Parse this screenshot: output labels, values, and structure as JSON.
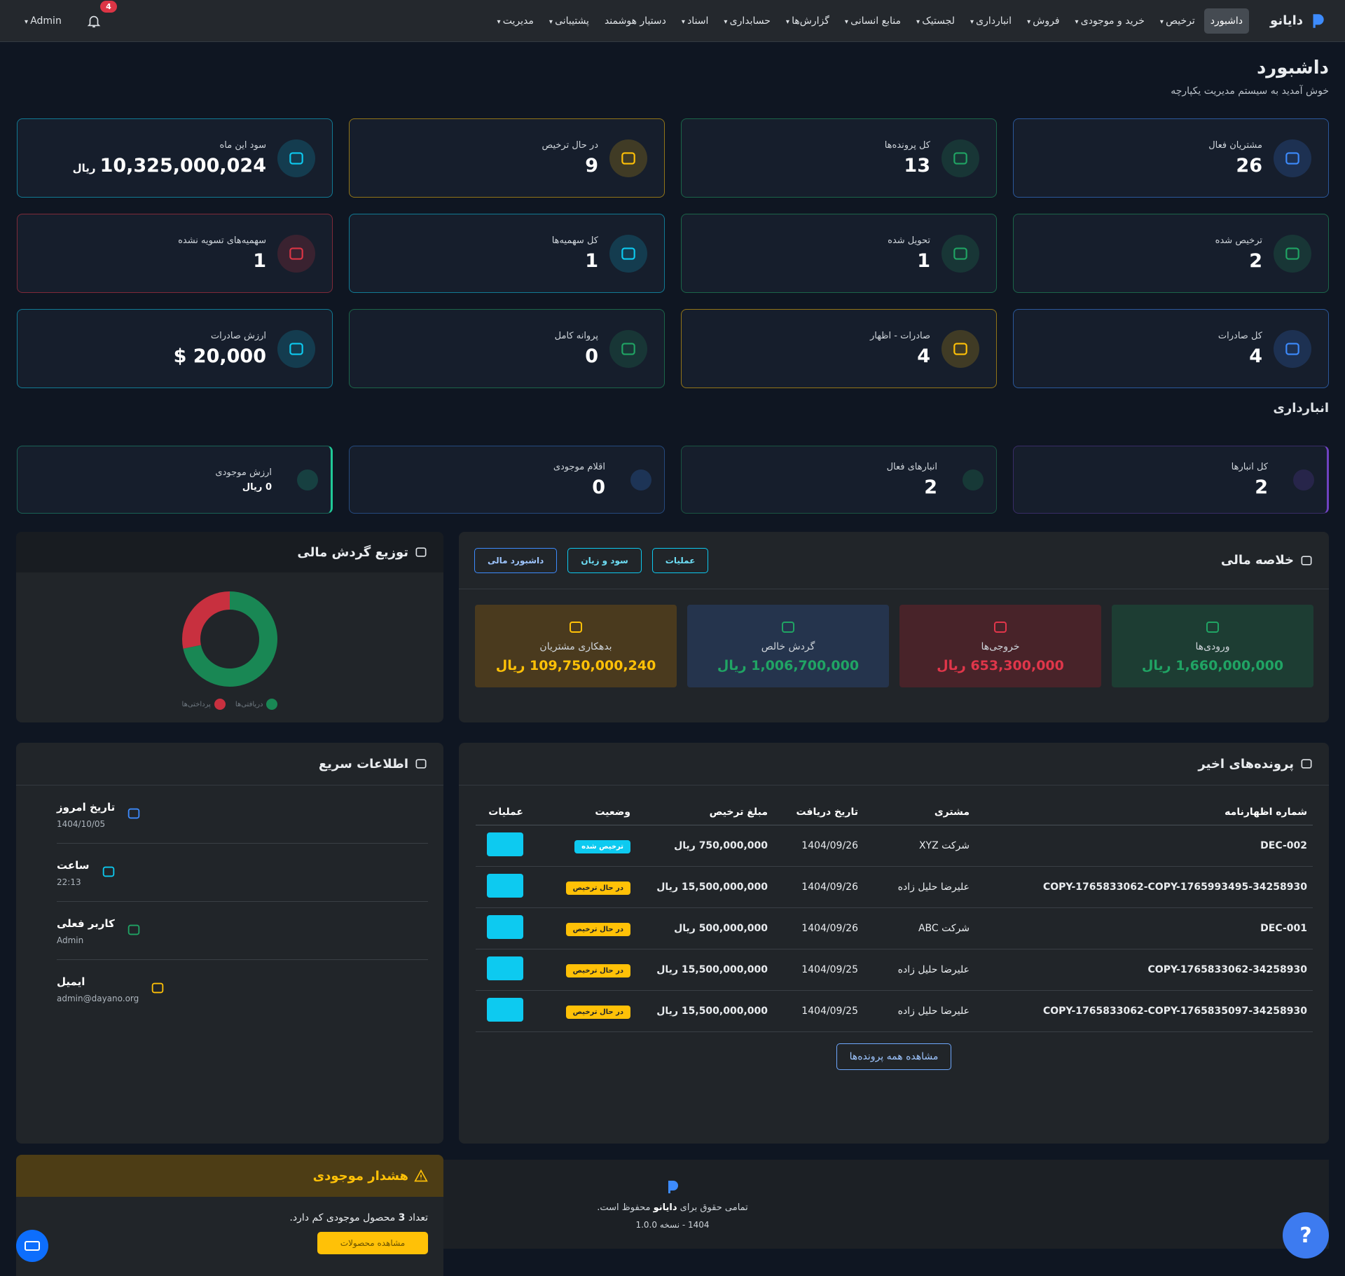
{
  "nav": {
    "brand": "دایانو",
    "items": [
      "داشبورد",
      "ترخیص",
      "خرید و موجودی",
      "فروش",
      "انبارداری",
      "لجستیک",
      "منابع انسانی",
      "گزارش‌ها",
      "حسابداری",
      "اسناد",
      "دستیار هوشمند",
      "پشتیبانی",
      "مدیریت"
    ],
    "notifications": "4",
    "user": "Admin"
  },
  "header": {
    "title": "داشبورد",
    "subtitle": "خوش آمدید به سیستم مدیریت یکپارچه"
  },
  "stats": [
    {
      "label": "مشتریان فعال",
      "value": "26",
      "color": "#3d8bfd"
    },
    {
      "label": "کل پرونده‌ها",
      "value": "13",
      "color": "#20a464"
    },
    {
      "label": "در حال ترخیص",
      "value": "9",
      "color": "#ffc107"
    },
    {
      "label": "سود این ماه",
      "value": "10,325,000,024",
      "unit": "ریال",
      "color": "#0dcaf0"
    },
    {
      "label": "ترخیص شده",
      "value": "2",
      "color": "#20a464"
    },
    {
      "label": "تحویل شده",
      "value": "1",
      "color": "#20a464"
    },
    {
      "label": "کل سهمیه‌ها",
      "value": "1",
      "color": "#0dcaf0"
    },
    {
      "label": "سهمیه‌های تسویه نشده",
      "value": "1",
      "color": "#dc3545"
    },
    {
      "label": "کل صادرات",
      "value": "4",
      "color": "#3d8bfd"
    },
    {
      "label": "صادرات - اظهار",
      "value": "4",
      "color": "#ffc107"
    },
    {
      "label": "پروانه کامل",
      "value": "0",
      "color": "#20a464"
    },
    {
      "label": "ارزش صادرات",
      "value": "20,000 $",
      "color": "#0dcaf0"
    }
  ],
  "warehouse": {
    "title": "انبارداری",
    "cards": [
      {
        "label": "کل انبارها",
        "value": "2",
        "color": "#6f42c1"
      },
      {
        "label": "انبارهای فعال",
        "value": "2",
        "color": "#20a464"
      },
      {
        "label": "اقلام موجودی",
        "value": "0",
        "color": "#3d8bfd"
      },
      {
        "label": "ارزش موجودی",
        "value": "0 ریال",
        "color": "#20c997"
      }
    ]
  },
  "finance": {
    "title": "خلاصه مالی",
    "tabs": [
      "داشبورد مالی",
      "سود و زیان",
      "عملیات"
    ],
    "cards": [
      {
        "label": "ورودی‌ها",
        "value": "1,660,000,000 ریال",
        "color": "#20a464",
        "bg": "#1d3d33"
      },
      {
        "label": "خروجی‌ها",
        "value": "653,300,000 ریال",
        "color": "#e0364a",
        "bg": "#482329"
      },
      {
        "label": "گردش خالص",
        "value": "1,006,700,000 ریال",
        "color": "#20a464",
        "bg": "#25344d"
      },
      {
        "label": "بدهکاری مشتریان",
        "value": "109,750,000,240 ریال",
        "color": "#ffc107",
        "bg": "#4a3a1e"
      }
    ]
  },
  "chart_data": {
    "type": "pie",
    "title": "توزیع گردش مالی",
    "categories": [
      "دریافتی‌ها",
      "پرداختی‌ها"
    ],
    "values": [
      1660000000,
      653300000
    ],
    "colors": [
      "#198754",
      "#c8303f"
    ]
  },
  "quick_info": {
    "title": "اطلاعات سریع",
    "items": [
      {
        "label": "تاریخ امروز",
        "value": "1404/10/05",
        "color": "#3d8bfd"
      },
      {
        "label": "ساعت",
        "value": "22:13",
        "color": "#0dcaf0"
      },
      {
        "label": "کاربر فعلی",
        "value": "Admin",
        "color": "#20a464"
      },
      {
        "label": "ایمیل",
        "value": "admin@dayano.org",
        "color": "#ffc107"
      }
    ]
  },
  "recent": {
    "title": "پرونده‌های اخیر",
    "columns": [
      "شماره اظهارنامه",
      "مشتری",
      "تاریخ دریافت",
      "مبلغ ترخیص",
      "وضعیت",
      "عملیات"
    ],
    "rows": [
      [
        "DEC-002",
        "شرکت XYZ",
        "1404/09/26",
        "750,000,000 ریال",
        "ترخیص شده"
      ],
      [
        "COPY-1765833062-COPY-1765993495-34258930",
        "علیرضا حلیل زاده",
        "1404/09/26",
        "15,500,000,000 ریال",
        "در حال ترخیص"
      ],
      [
        "DEC-001",
        "شرکت ABC",
        "1404/09/26",
        "500,000,000 ریال",
        "در حال ترخیص"
      ],
      [
        "COPY-1765833062-34258930",
        "علیرضا حلیل زاده",
        "1404/09/25",
        "15,500,000,000 ریال",
        "در حال ترخیص"
      ],
      [
        "COPY-1765833062-COPY-1765835097-34258930",
        "علیرضا حلیل زاده",
        "1404/09/25",
        "15,500,000,000 ریال",
        "در حال ترخیص"
      ]
    ],
    "button": "مشاهده همه پرونده‌ها"
  },
  "stock_alert": {
    "title": "هشدار موجودی",
    "message_pre": "تعداد",
    "count": "3",
    "message_post": "محصول موجودی کم دارد.",
    "button": "مشاهده محصولات"
  },
  "footer": {
    "text_pre": "تمامی حقوق برای",
    "brand": "دایانو",
    "text_post": "محفوظ است.",
    "version": "1404 - نسخه 1.0.0"
  }
}
